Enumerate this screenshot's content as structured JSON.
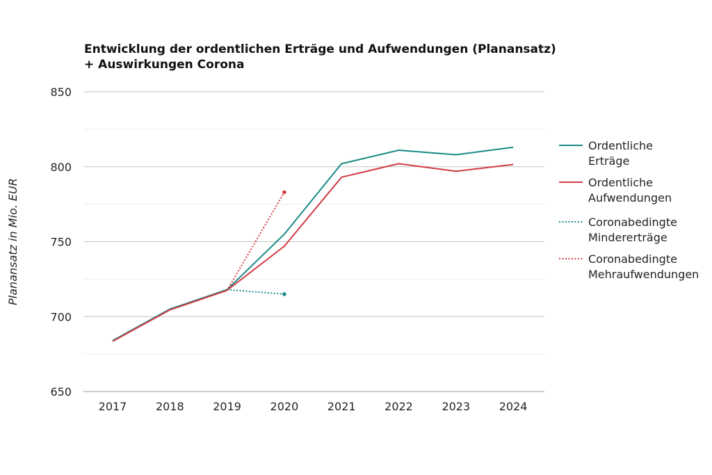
{
  "chart_data": {
    "type": "line",
    "title_lines": [
      "Entwicklung der ordentlichen Erträge und Aufwendungen (Planansatz)",
      "+ Auswirkungen Corona"
    ],
    "xlabel": "",
    "ylabel": "Planansatz in Mio. EUR",
    "x": [
      "2017",
      "2018",
      "2019",
      "2020",
      "2021",
      "2022",
      "2023",
      "2024"
    ],
    "ylim": [
      650,
      850
    ],
    "yticks": [
      "850",
      "800",
      "750",
      "700",
      "650"
    ],
    "ytick_values": [
      850,
      800,
      750,
      700,
      650
    ],
    "minor_grid_values": [
      825,
      775,
      725,
      675
    ],
    "grid": true,
    "legend_position": "right",
    "series": [
      {
        "name_lines": [
          "Ordentliche",
          "Erträge"
        ],
        "color": "#1a8a86",
        "style": "solid",
        "values": [
          684,
          705,
          718,
          755,
          802,
          811,
          808,
          813
        ]
      },
      {
        "name_lines": [
          "Ordentliche",
          "Aufwendungen"
        ],
        "color": "#d23a43",
        "style": "solid",
        "values": [
          683.5,
          704.5,
          717.5,
          747,
          793,
          802,
          797,
          801.5
        ]
      },
      {
        "name_lines": [
          "Coronabedingte",
          "Mindererträge"
        ],
        "color": "#1a8a86",
        "style": "dotted",
        "values": [
          null,
          null,
          718,
          715,
          null,
          null,
          null,
          null
        ]
      },
      {
        "name_lines": [
          "Coronabedingte",
          "Mehraufwendungen"
        ],
        "color": "#d23a43",
        "style": "dotted",
        "values": [
          null,
          null,
          717.5,
          783,
          null,
          null,
          null,
          null
        ]
      }
    ]
  }
}
